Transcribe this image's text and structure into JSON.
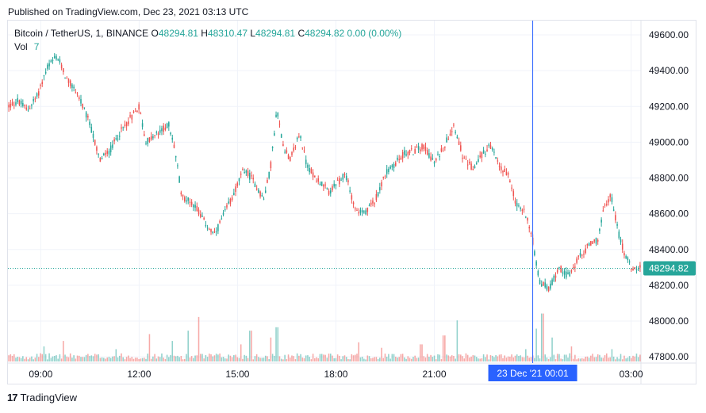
{
  "header": {
    "published": "Published on TradingView.com, Dec 23, 2021 03:13 UTC"
  },
  "legend": {
    "symbol": "Bitcoin / TetherUS, 1, BINANCE",
    "open_label": "O",
    "open": "48294.81",
    "high_label": "H",
    "high": "48310.47",
    "low_label": "L",
    "low": "48294.81",
    "close_label": "C",
    "close": "48294.82",
    "change": "0.00 (0.00%)",
    "vol_label": "Vol",
    "vol_value": "7"
  },
  "footer": {
    "brand": "TradingView",
    "logo": "17"
  },
  "colors": {
    "up": "#26a69a",
    "down": "#ef5350",
    "crosshair": "#2962ff",
    "grid": "#f0f3fa"
  },
  "chart_data": {
    "type": "candlestick",
    "symbol": "Bitcoin / TetherUS",
    "interval": "1",
    "exchange": "BINANCE",
    "y_ticks": [
      "49600.00",
      "49400.00",
      "49200.00",
      "49000.00",
      "48800.00",
      "48600.00",
      "48400.00",
      "48200.00",
      "48000.00",
      "47800.00"
    ],
    "ylim": [
      47765,
      49680
    ],
    "x_ticks": [
      "09:00",
      "12:00",
      "15:00",
      "18:00",
      "21:00",
      "03:00"
    ],
    "x_tick_hours": [
      9,
      12,
      15,
      18,
      21,
      27
    ],
    "xlim_hours": [
      8.0,
      27.3
    ],
    "current_price_label": "48294.82",
    "current_price": 48294.82,
    "crosshair_label": "23 Dec '21   00:01",
    "crosshair_hours": 24.0,
    "price_path": [
      [
        8.0,
        49200
      ],
      [
        8.3,
        49230
      ],
      [
        8.6,
        49180
      ],
      [
        8.9,
        49260
      ],
      [
        9.2,
        49420
      ],
      [
        9.5,
        49480
      ],
      [
        9.8,
        49350
      ],
      [
        10.1,
        49280
      ],
      [
        10.5,
        49100
      ],
      [
        10.8,
        48900
      ],
      [
        11.1,
        48950
      ],
      [
        11.4,
        49050
      ],
      [
        11.8,
        49150
      ],
      [
        12.0,
        49200
      ],
      [
        12.2,
        49000
      ],
      [
        12.6,
        49050
      ],
      [
        12.9,
        49100
      ],
      [
        13.1,
        48950
      ],
      [
        13.3,
        48700
      ],
      [
        13.7,
        48650
      ],
      [
        14.0,
        48550
      ],
      [
        14.3,
        48480
      ],
      [
        14.6,
        48600
      ],
      [
        14.9,
        48720
      ],
      [
        15.2,
        48850
      ],
      [
        15.5,
        48780
      ],
      [
        15.8,
        48680
      ],
      [
        16.0,
        48850
      ],
      [
        16.2,
        49180
      ],
      [
        16.4,
        48980
      ],
      [
        16.6,
        48900
      ],
      [
        16.9,
        49050
      ],
      [
        17.1,
        48880
      ],
      [
        17.3,
        48820
      ],
      [
        17.5,
        48780
      ],
      [
        17.8,
        48720
      ],
      [
        18.0,
        48760
      ],
      [
        18.3,
        48820
      ],
      [
        18.6,
        48620
      ],
      [
        18.9,
        48600
      ],
      [
        19.2,
        48680
      ],
      [
        19.5,
        48820
      ],
      [
        19.8,
        48880
      ],
      [
        20.1,
        48940
      ],
      [
        20.4,
        48950
      ],
      [
        20.7,
        48980
      ],
      [
        21.0,
        48880
      ],
      [
        21.3,
        48980
      ],
      [
        21.6,
        49100
      ],
      [
        21.9,
        48900
      ],
      [
        22.2,
        48850
      ],
      [
        22.4,
        48920
      ],
      [
        22.7,
        48980
      ],
      [
        23.0,
        48860
      ],
      [
        23.3,
        48800
      ],
      [
        23.5,
        48650
      ],
      [
        23.8,
        48600
      ],
      [
        24.0,
        48450
      ],
      [
        24.2,
        48220
      ],
      [
        24.5,
        48180
      ],
      [
        24.8,
        48300
      ],
      [
        25.1,
        48250
      ],
      [
        25.4,
        48350
      ],
      [
        25.7,
        48420
      ],
      [
        26.0,
        48460
      ],
      [
        26.2,
        48650
      ],
      [
        26.4,
        48700
      ],
      [
        26.6,
        48500
      ],
      [
        26.8,
        48380
      ],
      [
        27.0,
        48300
      ],
      [
        27.3,
        48294.82
      ]
    ],
    "volume_ylim": [
      0,
      110
    ],
    "volume_spikes": [
      [
        9.1,
        22
      ],
      [
        9.7,
        30
      ],
      [
        11.3,
        18
      ],
      [
        12.3,
        40
      ],
      [
        13.0,
        30
      ],
      [
        13.5,
        45
      ],
      [
        13.8,
        65
      ],
      [
        15.1,
        25
      ],
      [
        15.4,
        45
      ],
      [
        16.0,
        35
      ],
      [
        16.2,
        50
      ],
      [
        18.7,
        28
      ],
      [
        19.4,
        20
      ],
      [
        20.6,
        25
      ],
      [
        21.3,
        38
      ],
      [
        21.7,
        60
      ],
      [
        23.8,
        18
      ],
      [
        24.1,
        48
      ],
      [
        24.3,
        70
      ],
      [
        24.6,
        35
      ],
      [
        25.2,
        22
      ],
      [
        26.4,
        18
      ]
    ]
  }
}
